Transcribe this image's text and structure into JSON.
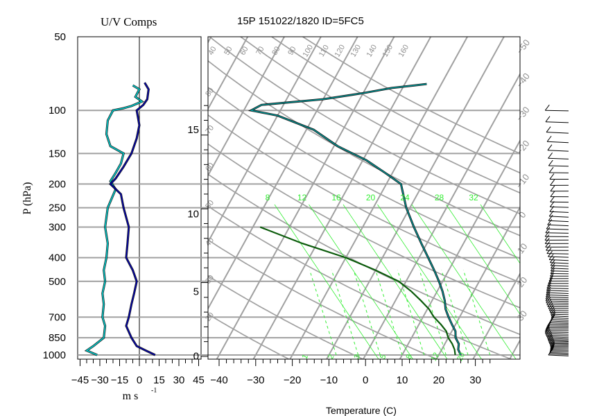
{
  "header": {
    "uv_title": "U/V Comps",
    "station_title": "15P 151022/1820 ID=5FC5"
  },
  "colors": {
    "isobar": "#a0a0a0",
    "temperature": "#0a6a5a",
    "dewpoint_parcel": "#0a5a0a",
    "mixing_ratio": "#33ee33",
    "u_component": "#00cccc",
    "v_component": "#0000aa"
  },
  "chart_data": [
    {
      "type": "line",
      "title": "U/V Comps",
      "xlabel": "m s",
      "xlabel_exponent": "-1",
      "ylabel": "P (hPa)",
      "y_scale": "log",
      "xlim": [
        -50,
        50
      ],
      "ylim": [
        1000,
        50
      ],
      "x_ticks": [
        -45,
        -30,
        -15,
        0,
        15,
        30,
        45
      ],
      "y_ticks": [
        50,
        100,
        150,
        200,
        250,
        300,
        400,
        500,
        700,
        850,
        1000
      ],
      "grid": true,
      "series": [
        {
          "key": "u",
          "color": "#00cccc",
          "points": [
            [
              -5,
              79
            ],
            [
              0,
              82
            ],
            [
              -3,
              88
            ],
            [
              2,
              92
            ],
            [
              -6,
              96
            ],
            [
              -12,
              98
            ],
            [
              -20,
              100
            ],
            [
              -24,
              110
            ],
            [
              -25,
              125
            ],
            [
              -22,
              140
            ],
            [
              -12,
              150
            ],
            [
              -14,
              165
            ],
            [
              -18,
              180
            ],
            [
              -22,
              195
            ],
            [
              -18,
              210
            ],
            [
              -24,
              250
            ],
            [
              -26,
              300
            ],
            [
              -24,
              350
            ],
            [
              -25,
              400
            ],
            [
              -27,
              450
            ],
            [
              -26,
              500
            ],
            [
              -28,
              560
            ],
            [
              -27,
              620
            ],
            [
              -28,
              700
            ],
            [
              -26,
              760
            ],
            [
              -27,
              850
            ],
            [
              -35,
              920
            ],
            [
              -40,
              960
            ],
            [
              -32,
              1000
            ]
          ]
        },
        {
          "key": "v",
          "color": "#0000aa",
          "points": [
            [
              4,
              77
            ],
            [
              7,
              82
            ],
            [
              6,
              90
            ],
            [
              3,
              95
            ],
            [
              -2,
              100
            ],
            [
              0,
              115
            ],
            [
              -2,
              130
            ],
            [
              -6,
              150
            ],
            [
              -12,
              170
            ],
            [
              -18,
              190
            ],
            [
              -22,
              200
            ],
            [
              -14,
              220
            ],
            [
              -12,
              250
            ],
            [
              -8,
              300
            ],
            [
              -9,
              350
            ],
            [
              -10,
              400
            ],
            [
              -5,
              450
            ],
            [
              -2,
              500
            ],
            [
              -4,
              560
            ],
            [
              -6,
              620
            ],
            [
              -8,
              700
            ],
            [
              -10,
              760
            ],
            [
              -6,
              850
            ],
            [
              -2,
              920
            ],
            [
              5,
              960
            ],
            [
              12,
              1000
            ]
          ]
        }
      ]
    },
    {
      "type": "line",
      "title": "15P 151022/1820 ID=5FC5",
      "xlabel": "Temperature (C)",
      "y_scale": "log",
      "ylim": [
        1000,
        50
      ],
      "x_ticks": [
        -40,
        -30,
        -20,
        -10,
        0,
        10,
        20,
        30
      ],
      "height_ticks_km": [
        0,
        5,
        10,
        15
      ],
      "height_tick_pressure_hpa": [
        1010,
        550,
        265,
        120
      ],
      "dry_adiabat_labels": [
        40,
        50,
        60,
        70,
        80,
        90,
        100,
        110,
        120,
        130,
        140,
        150,
        160
      ],
      "skewed_isotherm_labels": [
        -50,
        -40,
        -30,
        -20,
        -10,
        0,
        10,
        20,
        30
      ],
      "skewed_isotherm_labels_display": [
        "−50",
        "−40",
        "−30",
        "−20",
        "−10",
        "0",
        "10",
        "20",
        "30"
      ],
      "left_isotherm_labels": [
        -80,
        -70,
        -60,
        -50,
        -40,
        -30,
        -20
      ],
      "left_isotherm_labels_display": [
        "80",
        "70",
        "60",
        "50",
        "40",
        "30",
        "20"
      ],
      "mixing_ratio_top_labels": [
        8,
        12,
        16,
        20,
        24,
        28,
        32
      ],
      "mixing_ratio_bottom_labels": [
        1,
        2,
        3,
        5,
        8,
        12,
        20
      ],
      "grid": true,
      "series": [
        {
          "key": "temperature",
          "color": "#0a6a5a",
          "points": [
            [
              26,
              1000
            ],
            [
              24.5,
              950
            ],
            [
              23.8,
              900
            ],
            [
              22,
              850
            ],
            [
              21,
              800
            ],
            [
              19,
              750
            ],
            [
              17,
              700
            ],
            [
              15,
              650
            ],
            [
              13.5,
              600
            ],
            [
              11.5,
              550
            ],
            [
              9,
              500
            ],
            [
              6,
              450
            ],
            [
              2.5,
              400
            ],
            [
              -1.5,
              350
            ],
            [
              -6,
              300
            ],
            [
              -11,
              250
            ],
            [
              -16,
              200
            ],
            [
              -22,
              180
            ],
            [
              -29,
              160
            ],
            [
              -39,
              140
            ],
            [
              -48,
              120
            ],
            [
              -60,
              105
            ],
            [
              -68,
              100
            ],
            [
              -66,
              95
            ],
            [
              -50,
              90
            ],
            [
              -40,
              85
            ],
            [
              -33,
              81
            ],
            [
              -27,
              79
            ],
            [
              -24,
              78
            ]
          ]
        },
        {
          "key": "dewpoint",
          "color": "#0a5a0a",
          "points": [
            [
              24.5,
              1000
            ],
            [
              23.5,
              950
            ],
            [
              22,
              900
            ],
            [
              20,
              850
            ],
            [
              18.5,
              800
            ],
            [
              16,
              750
            ],
            [
              13,
              700
            ],
            [
              10.5,
              650
            ],
            [
              7,
              600
            ],
            [
              3,
              550
            ],
            [
              -2,
              500
            ],
            [
              -10,
              450
            ],
            [
              -20,
              400
            ],
            [
              -34,
              350
            ],
            [
              -48,
              300
            ]
          ]
        }
      ]
    }
  ],
  "wind_barbs": {
    "pressure_top_hpa": 100,
    "pressure_bottom_hpa": 1000,
    "count": 80
  }
}
